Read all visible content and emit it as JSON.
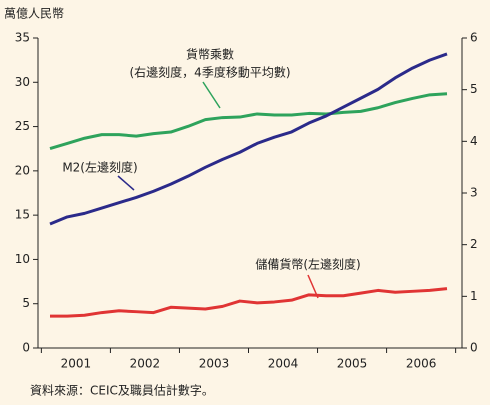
{
  "chart_data": {
    "type": "line",
    "y_label": "萬億人民幣",
    "source": "資料來源：CEIC及職員估計數字。",
    "categories": [
      "2001",
      null,
      null,
      null,
      "2002",
      null,
      null,
      null,
      "2003",
      null,
      null,
      null,
      "2004",
      null,
      null,
      null,
      "2005",
      null,
      null,
      null,
      "2006",
      null,
      null,
      null
    ],
    "ylim": [
      0,
      35
    ],
    "yticks": [
      0,
      5,
      10,
      15,
      20,
      25,
      30,
      35
    ],
    "y2lim": [
      0,
      6
    ],
    "y2ticks": [
      0,
      1,
      2,
      3,
      4,
      5,
      6
    ],
    "series": [
      {
        "name": "貨幣乘數",
        "note": "(右邊刻度，4季度移動平均數)",
        "color": "#2ea35c",
        "axis": "y2",
        "values": [
          3.86,
          3.96,
          4.06,
          4.13,
          4.13,
          4.1,
          4.15,
          4.18,
          4.29,
          4.42,
          4.46,
          4.47,
          4.53,
          4.51,
          4.51,
          4.54,
          4.53,
          4.56,
          4.58,
          4.65,
          4.75,
          4.83,
          4.9,
          4.92
        ]
      },
      {
        "name": "M2(左邊刻度)",
        "color": "#2b2a8a",
        "values": [
          14,
          14.8,
          15.2,
          15.8,
          16.4,
          17.0,
          17.7,
          18.5,
          19.4,
          20.4,
          21.3,
          22.1,
          23.1,
          23.8,
          24.4,
          25.4,
          26.2,
          27.2,
          28.2,
          29.2,
          30.5,
          31.6,
          32.5,
          33.2
        ]
      },
      {
        "name": "儲備貨幣(左邊刻度)",
        "color": "#e03434",
        "values": [
          3.6,
          3.6,
          3.7,
          4.0,
          4.2,
          4.1,
          4.0,
          4.6,
          4.5,
          4.4,
          4.7,
          5.3,
          5.1,
          5.2,
          5.4,
          6.0,
          5.9,
          5.9,
          6.2,
          6.5,
          6.3,
          6.4,
          6.5,
          6.7
        ]
      }
    ]
  }
}
